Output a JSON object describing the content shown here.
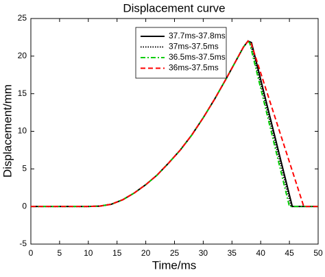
{
  "chart_data": {
    "type": "line",
    "title": "Displacement curve",
    "xlabel": "Time/ms",
    "ylabel": "Displacement/mm",
    "xlim": [
      0,
      50
    ],
    "xticks": [
      0,
      5,
      10,
      15,
      20,
      25,
      30,
      35,
      40,
      45,
      50
    ],
    "ylim": [
      -5,
      25
    ],
    "yticks": [
      -5,
      0,
      5,
      10,
      15,
      20,
      25
    ],
    "grid": false,
    "legend": "upper center",
    "series": [
      {
        "name": "37.7ms-37.8ms",
        "color": "#000000",
        "style": "solid",
        "x": [
          0,
          10,
          12,
          14,
          16,
          18,
          20,
          22,
          24,
          26,
          28,
          30,
          32,
          34,
          36,
          37,
          37.8,
          38.4,
          45.5,
          50
        ],
        "values": [
          0,
          0,
          0.05,
          0.3,
          0.9,
          1.8,
          2.9,
          4.2,
          5.8,
          7.5,
          9.5,
          11.8,
          14.3,
          17,
          19.8,
          21.2,
          22,
          21.8,
          0,
          0
        ]
      },
      {
        "name": "37ms-37.5ms",
        "color": "#000000",
        "style": "dotted",
        "x": [
          0,
          10,
          12,
          14,
          16,
          18,
          20,
          22,
          24,
          26,
          28,
          30,
          32,
          34,
          36,
          37,
          37.8,
          38.2,
          45.3,
          50
        ],
        "values": [
          0,
          0,
          0.05,
          0.3,
          0.9,
          1.8,
          2.9,
          4.2,
          5.8,
          7.5,
          9.5,
          11.8,
          14.3,
          17,
          19.8,
          21.2,
          22,
          21.8,
          0,
          0
        ]
      },
      {
        "name": "36.5ms-37.5ms",
        "color": "#00cc00",
        "style": "dashdot",
        "x": [
          0,
          10,
          12,
          14,
          16,
          18,
          20,
          22,
          24,
          26,
          28,
          30,
          32,
          34,
          36,
          37,
          37.8,
          38.1,
          45,
          50
        ],
        "values": [
          0,
          0,
          0.05,
          0.3,
          0.9,
          1.8,
          2.9,
          4.2,
          5.8,
          7.5,
          9.5,
          11.8,
          14.3,
          17,
          19.8,
          21.2,
          22,
          21.7,
          0,
          0
        ]
      },
      {
        "name": "36ms-37.5ms",
        "color": "#ff0000",
        "style": "dashed",
        "x": [
          0,
          10,
          12,
          14,
          16,
          18,
          20,
          22,
          24,
          26,
          28,
          30,
          32,
          34,
          36,
          37,
          37.8,
          38.3,
          47.5,
          50
        ],
        "values": [
          0,
          0,
          0.05,
          0.3,
          0.9,
          1.8,
          2.9,
          4.2,
          5.8,
          7.5,
          9.5,
          11.8,
          14.3,
          17,
          19.8,
          21.2,
          22,
          21.8,
          0,
          0
        ]
      }
    ]
  }
}
